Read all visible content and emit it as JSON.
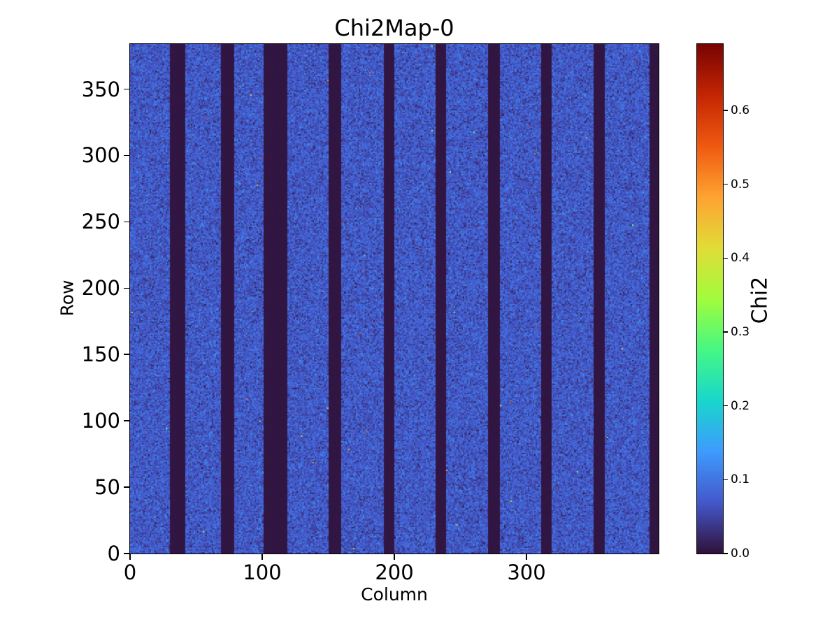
{
  "chart_data": {
    "type": "heatmap",
    "title": "Chi2Map-0",
    "xlabel": "Column",
    "ylabel": "Row",
    "colorbar_label": "Chi2",
    "grid_cols": 400,
    "grid_rows": 384,
    "xlim": [
      0,
      400
    ],
    "ylim": [
      0,
      384
    ],
    "vmin": 0.0,
    "vmax": 0.69,
    "grid": false,
    "legend": "colorbar-right",
    "xtick_values": [
      0,
      100,
      200,
      300
    ],
    "xtick_labels": [
      "0",
      "100",
      "200",
      "300"
    ],
    "ytick_values": [
      0,
      50,
      100,
      150,
      200,
      250,
      300,
      350
    ],
    "ytick_labels": [
      "0",
      "50",
      "100",
      "150",
      "200",
      "250",
      "300",
      "350"
    ],
    "colorbar_tick_values": [
      0.0,
      0.1,
      0.2,
      0.3,
      0.4,
      0.5,
      0.6
    ],
    "colorbar_tick_labels": [
      "0.0",
      "0.1",
      "0.2",
      "0.3",
      "0.4",
      "0.5",
      "0.6"
    ],
    "colormap": "turbo",
    "colormap_stops": [
      {
        "t": 0.0,
        "c": "#30123b"
      },
      {
        "t": 0.1,
        "c": "#4458cb"
      },
      {
        "t": 0.2,
        "c": "#3e9bfe"
      },
      {
        "t": 0.3,
        "c": "#18d7cc"
      },
      {
        "t": 0.4,
        "c": "#46f884"
      },
      {
        "t": 0.5,
        "c": "#a2fc3c"
      },
      {
        "t": 0.6,
        "c": "#e1dd37"
      },
      {
        "t": 0.7,
        "c": "#fea331"
      },
      {
        "t": 0.8,
        "c": "#ef5a11"
      },
      {
        "t": 0.9,
        "c": "#c42503"
      },
      {
        "t": 1.0,
        "c": "#7a0403"
      }
    ],
    "background_noise": {
      "mean": 0.07,
      "sigma": 0.02
    },
    "dead_pixel_fraction": 0.0015,
    "outlier_fraction": 0.0004,
    "outlier_value_range": [
      0.3,
      0.69
    ],
    "dead_column_bands": [
      [
        30,
        12
      ],
      [
        69,
        10
      ],
      [
        101,
        18
      ],
      [
        150,
        10
      ],
      [
        192,
        8
      ],
      [
        231,
        8
      ],
      [
        271,
        9
      ],
      [
        311,
        8
      ],
      [
        351,
        8
      ],
      [
        393,
        7
      ]
    ],
    "dead_band_value": 0.002
  }
}
